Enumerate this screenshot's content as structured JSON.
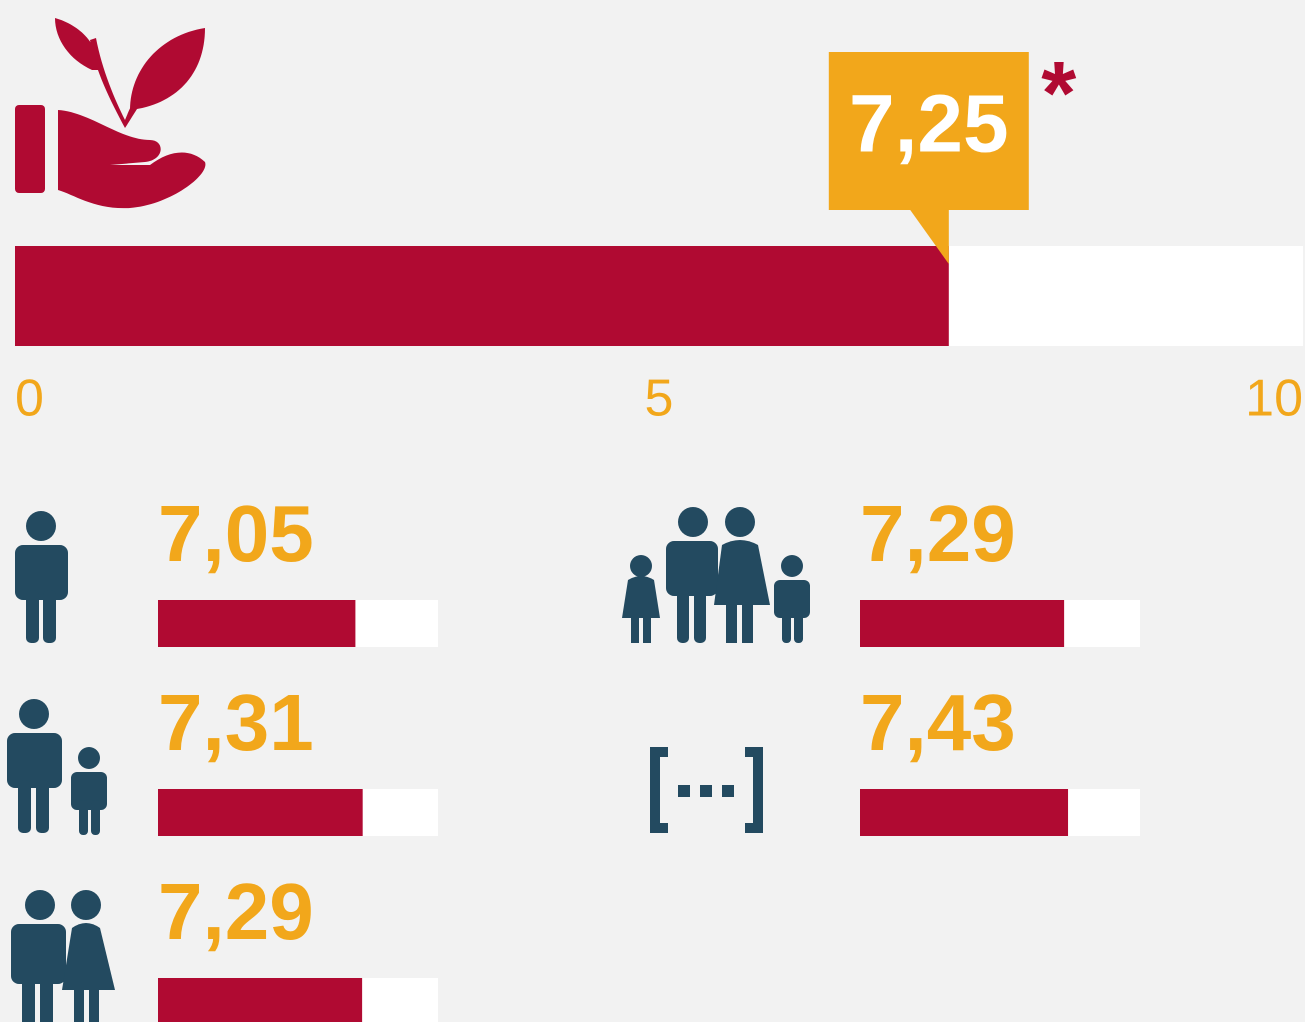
{
  "chart_data": [
    {
      "type": "bar",
      "values": [
        7.25
      ],
      "value_labels": [
        "7,25"
      ],
      "annotation": "*",
      "color": "#b00a32",
      "xlim": [
        0,
        10
      ],
      "xticks": [
        0,
        5,
        10
      ]
    },
    {
      "type": "bar",
      "categories": [
        null,
        null,
        null,
        null,
        null
      ],
      "values": [
        7.05,
        7.29,
        7.31,
        7.43,
        7.29
      ],
      "value_labels": [
        "7,05",
        "7,29",
        "7,31",
        "7,43",
        "7,29"
      ],
      "color": "#b00a32",
      "xlim": [
        0,
        10
      ]
    }
  ]
}
